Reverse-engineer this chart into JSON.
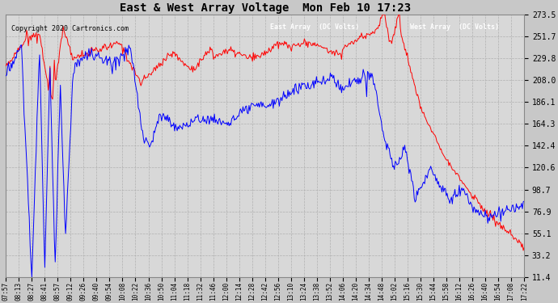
{
  "title": "East & West Array Voltage  Mon Feb 10 17:23",
  "copyright": "Copyright 2020 Cartronics.com",
  "legend_east": "East Array  (DC Volts)",
  "legend_west": "West Array  (DC Volts)",
  "line_east_color": "#0000ff",
  "line_west_color": "#ff0000",
  "bg_color": "#c8c8c8",
  "plot_bg_color": "#d8d8d8",
  "grid_color": "#b0b0b0",
  "yticks": [
    11.4,
    33.2,
    55.1,
    76.9,
    98.7,
    120.6,
    142.4,
    164.3,
    186.1,
    208.0,
    229.8,
    251.7,
    273.5
  ],
  "xtick_labels": [
    "07:57",
    "08:13",
    "08:27",
    "08:41",
    "08:57",
    "09:12",
    "09:26",
    "09:40",
    "09:54",
    "10:08",
    "10:22",
    "10:36",
    "10:50",
    "11:04",
    "11:18",
    "11:32",
    "11:46",
    "12:00",
    "12:14",
    "12:28",
    "12:42",
    "12:56",
    "13:10",
    "13:24",
    "13:38",
    "13:52",
    "14:06",
    "14:20",
    "14:34",
    "14:48",
    "15:02",
    "15:16",
    "15:30",
    "15:44",
    "15:58",
    "16:12",
    "16:26",
    "16:40",
    "16:54",
    "17:08",
    "17:22"
  ],
  "ymin": 11.4,
  "ymax": 273.5
}
